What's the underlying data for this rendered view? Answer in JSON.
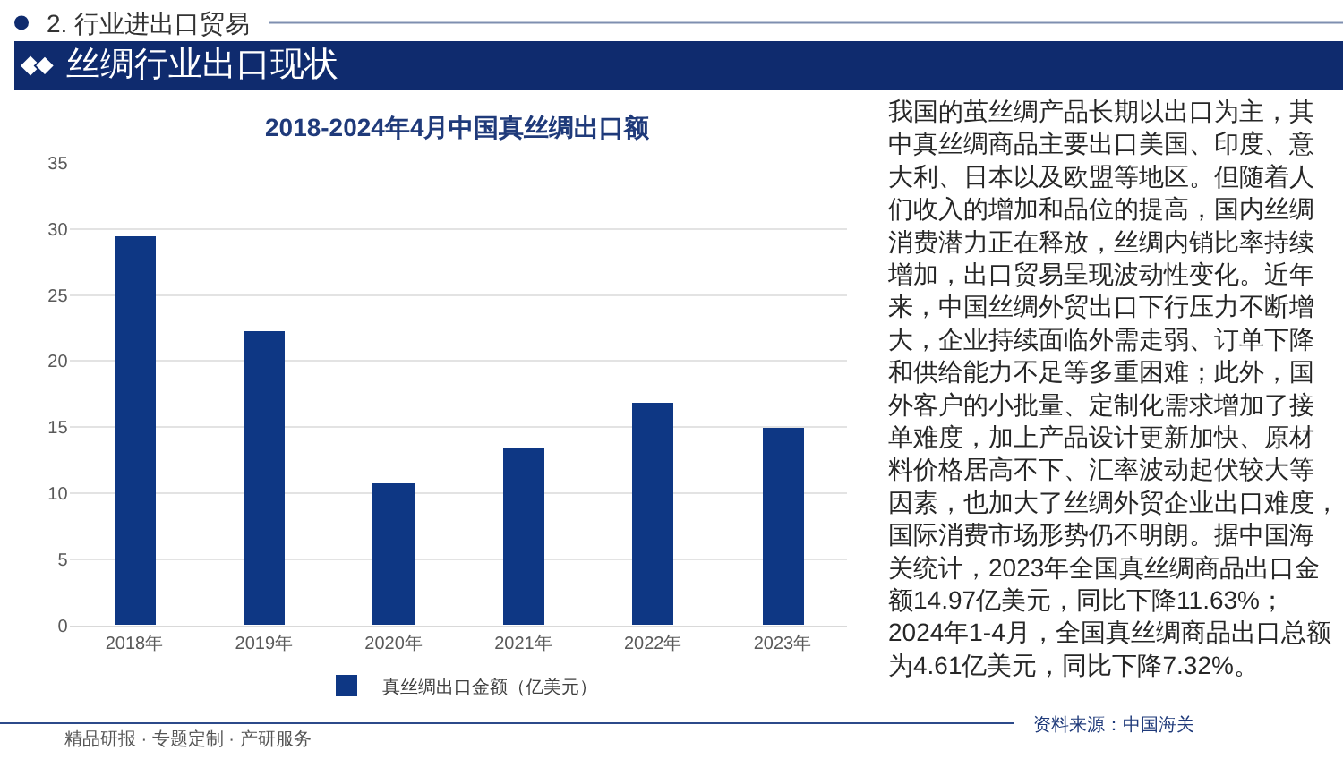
{
  "chart_data": [
    {
      "type": "bar",
      "title": "2018-2024年4月中国真丝绸出口额",
      "categories": [
        "2018年",
        "2019年",
        "2020年",
        "2021年",
        "2022年",
        "2023年"
      ],
      "series": [
        {
          "name": "真丝绸出口金额（亿美元）",
          "color": "#0e3784",
          "values": [
            29.5,
            22.3,
            10.7,
            13.4,
            16.9,
            14.97
          ]
        }
      ],
      "ylim": [
        0,
        35
      ],
      "yticks": [
        0,
        5,
        10,
        15,
        20,
        25,
        30,
        35
      ],
      "grid": "y",
      "legend": "bottom"
    },
    {
      "type": "other",
      "subtitle": "2. 行业进出口贸易",
      "title": "丝绸行业出口现状",
      "annotations": [
        "我国的茧丝绸产品长期以出口为主，其中真丝绸商品主要出口美国、印度、意大利、日本以及欧盟等地区。但随着人们收入的增加和品位的提高，国内丝绸消费潜力正在释放，丝绸内销比率持续增加，出口贸易呈现波动性变化。近年来，中国丝绸外贸出口下行压力不断增大，企业持续面临外需走弱、订单下降和供给能力不足等多重困难；此外，国外客户的小批量、定制化需求增加了接单难度，加上产品设计更新加快、原材料价格居高不下、汇率波动起伏较大等因素，也加大了丝绸外贸企业出口难度，国际消费市场形势仍不明朗。据中国海关统计，2023年全国真丝绸商品出口金额14.97亿美元，同比下降11.63%；2024年1-4月，全国真丝绸商品出口总额为4.61亿美元，同比下降7.32%。",
        "资料来源：中国海关",
        "精品研报 · 专题定制 · 产研服务"
      ]
    }
  ]
}
